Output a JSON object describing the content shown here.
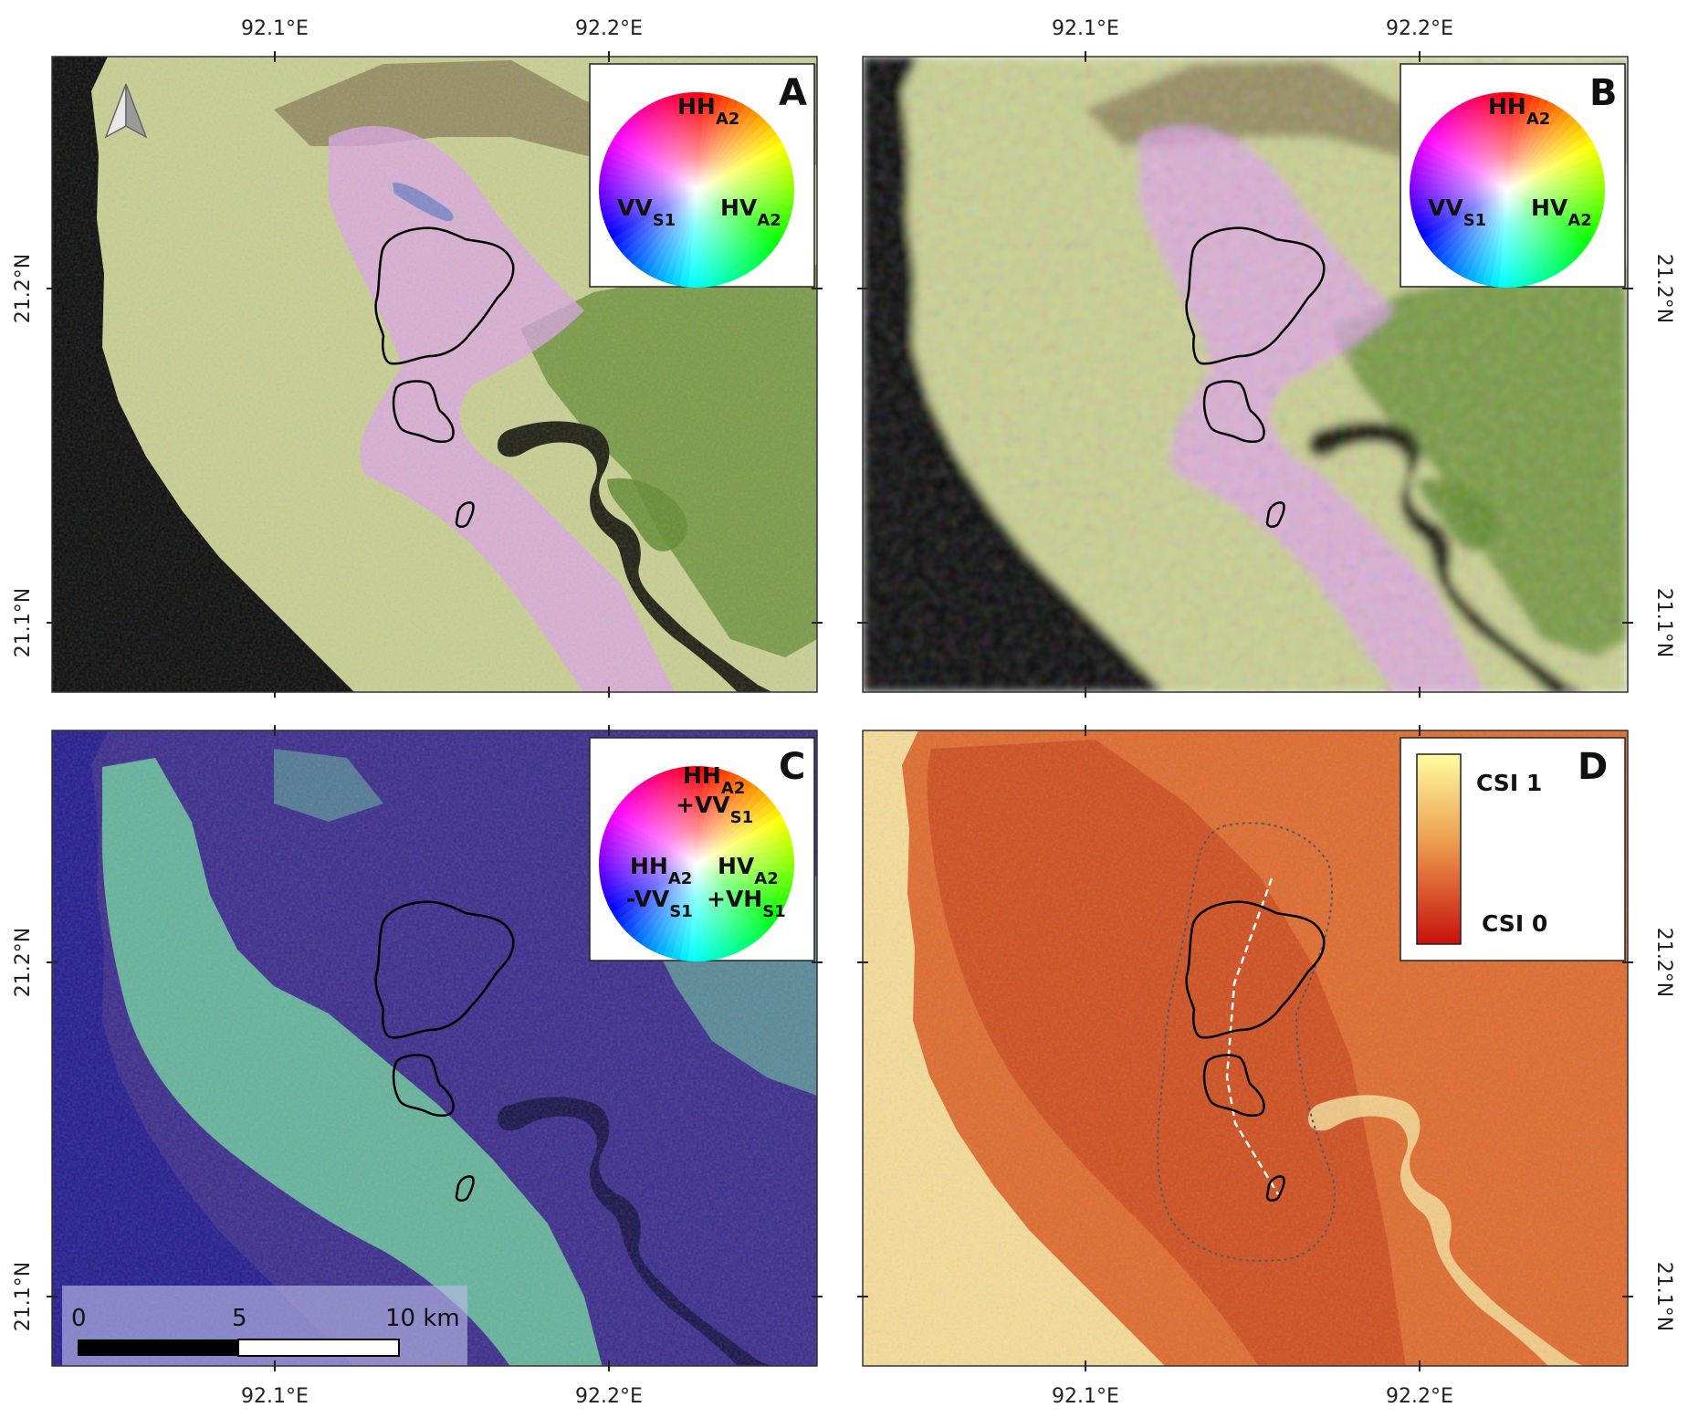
{
  "map": {
    "lon_labels": [
      "92.1°E",
      "92.2°E"
    ],
    "lat_labels": [
      "21.2°N",
      "21.1°N"
    ]
  },
  "panels": [
    {
      "letter": "A",
      "wheel": {
        "top": "HH",
        "top_sub": "A2",
        "left": "VV",
        "left_sub": "S1",
        "right": "HV",
        "right_sub": "A2"
      }
    },
    {
      "letter": "B",
      "wheel": {
        "top": "HH",
        "top_sub": "A2",
        "left": "VV",
        "left_sub": "S1",
        "right": "HV",
        "right_sub": "A2"
      }
    },
    {
      "letter": "C",
      "wheel": {
        "top_l1": "HH",
        "top_l1_sub": "A2",
        "top_l2": "+VV",
        "top_l2_sub": "S1",
        "left_l1": "HH",
        "left_l1_sub": "A2",
        "left_l2": "-VV",
        "left_l2_sub": "S1",
        "right_l1": "HV",
        "right_l1_sub": "A2",
        "right_l2": "+VH",
        "right_l2_sub": "S1"
      }
    },
    {
      "letter": "D",
      "legend": {
        "high": "CSI 1",
        "low": "CSI 0"
      }
    }
  ],
  "scalebar": {
    "ticks": [
      "0",
      "5",
      "10 km"
    ]
  },
  "colors": {
    "sea": "#0a0a0a",
    "land_pale": "#c9cf92",
    "land_green": "#5f8a2d",
    "river": "#1d1d10",
    "ph_magenta": "#dda4e8",
    "c_sea": "#221a8e",
    "c_land": "#3a2a8c",
    "c_green": "#6fd6a0",
    "d_dark": "#c43a14",
    "d_light": "#f6dc98"
  }
}
